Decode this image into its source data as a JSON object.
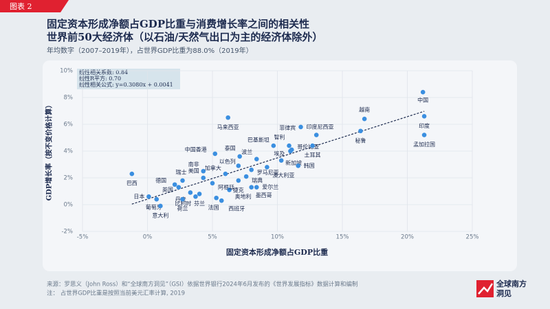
{
  "tag": "图表 2",
  "chart_data": {
    "type": "scatter",
    "title": "固定资本形成净额占GDP比重与消费增长率之间的相关性",
    "subtitle": "世界前50大经济体（以石油/天然气出口为主的经济体除外）",
    "note": "年均数字（2007–2019年），占世界GDP比重为88.0%（2019年）",
    "x_label": "固定资本形成净额占GDP比重",
    "y_label": "GDP增长率（按不变价格计算）",
    "annotations": [
      "线性相关系数: 0.84",
      "线性R平方: 0.70",
      "线性相关公式: y=0.3080x + 0.0041"
    ],
    "trendline": {
      "slope": 0.308,
      "intercept": 0.41
    },
    "color": "#3b8fe0",
    "labels": [
      "中国",
      "印度",
      "孟加拉国",
      "越南",
      "秘鲁",
      "印度尼西亚",
      "菲律宾",
      "智利",
      "哥伦比亚",
      "埃及",
      "土耳其",
      "巴基斯坦",
      "泰国",
      "中国香港",
      "马来西亚",
      "波兰",
      "新加坡",
      "韩国",
      "以色列",
      "南非",
      "加拿大",
      "澳大利亚",
      "罗马尼亚",
      "巴西",
      "瑞士",
      "德国",
      "美国",
      "英国",
      "丹麦",
      "比利时",
      "日本",
      "葡萄牙",
      "意大利",
      "荷兰",
      "芬兰",
      "法国",
      "西班牙",
      "奥地利",
      "阿根廷",
      "捷克",
      "瑞典",
      "墨西哥",
      "爱尔兰"
    ],
    "x": [
      21.2,
      21.3,
      21.3,
      16.7,
      16.4,
      11.8,
      13.0,
      10.9,
      11.1,
      11.0,
      12.7,
      9.7,
      7.1,
      5.2,
      6.2,
      8.4,
      10.3,
      11.6,
      7.0,
      4.3,
      6.0,
      9.2,
      8.0,
      -1.2,
      2.7,
      2.1,
      4.3,
      2.4,
      3.3,
      3.7,
      0.1,
      0.7,
      1.0,
      2.7,
      4.0,
      5.3,
      5.7,
      6.3,
      5.0,
      7.0,
      7.6,
      8.0,
      8.4
    ],
    "values": [
      8.4,
      6.6,
      5.2,
      6.4,
      5.5,
      5.8,
      5.2,
      4.4,
      4.1,
      4.0,
      4.4,
      4.4,
      3.6,
      3.8,
      6.5,
      3.4,
      3.3,
      2.9,
      2.9,
      2.5,
      2.3,
      2.8,
      2.6,
      2.3,
      1.8,
      1.5,
      2.0,
      1.3,
      0.9,
      0.6,
      0.6,
      0.4,
      -0.1,
      0.4,
      0.8,
      0.5,
      0.3,
      1.1,
      1.6,
      1.8,
      2.1,
      1.3,
      1.3
    ],
    "xlim": [
      -5,
      25
    ],
    "xticks": [
      {
        "value": -5,
        "label": "-5%"
      },
      {
        "value": 0,
        "label": "0%"
      },
      {
        "value": 5,
        "label": "5%"
      },
      {
        "value": 10,
        "label": "10%"
      },
      {
        "value": 15,
        "label": "15%"
      },
      {
        "value": 20,
        "label": "20%"
      },
      {
        "value": 25,
        "label": "25%"
      }
    ],
    "ylim": [
      -2,
      10
    ],
    "yticks": [
      {
        "value": -2,
        "label": "-2%"
      },
      {
        "value": 0,
        "label": "0%"
      },
      {
        "value": 2,
        "label": "2%"
      },
      {
        "value": 4,
        "label": "4%"
      },
      {
        "value": 6,
        "label": "6%"
      },
      {
        "value": 8,
        "label": "8%"
      },
      {
        "value": 10,
        "label": "10%"
      }
    ],
    "grid": true
  },
  "footer": {
    "source": "来源：罗思义（John Ross）和“全球南方洞见”（GSI）依据世界银行2024年6月发布的《世界发展指标》数据计算和编制",
    "note": "注：    占世界GDP比重是按照当前美元汇率计算, 2019",
    "logo": [
      "全球南方",
      "洞见"
    ]
  }
}
